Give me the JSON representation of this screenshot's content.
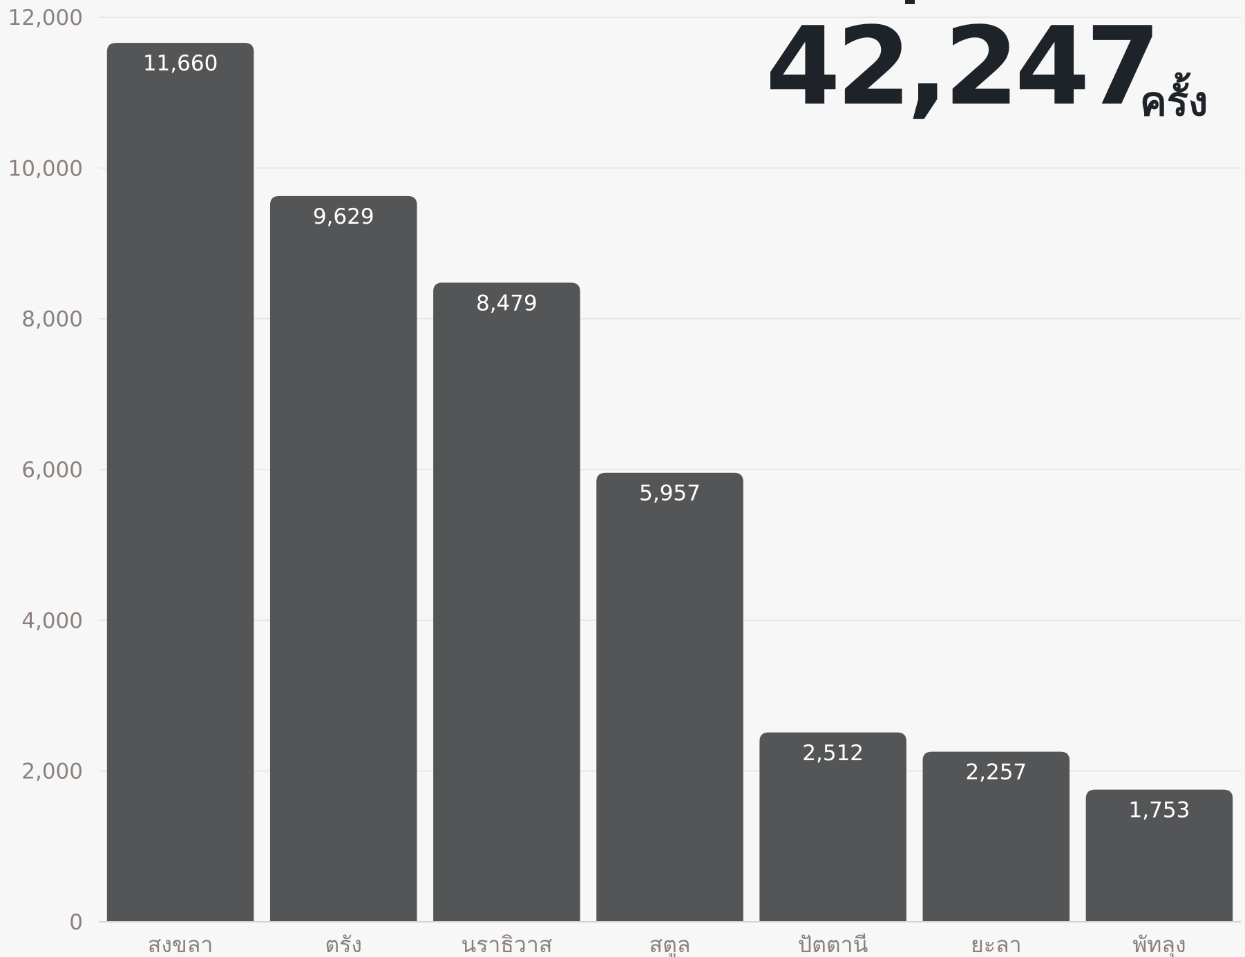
{
  "total": {
    "value": "42,247",
    "unit": "ครั้ง"
  },
  "colors": {
    "bar": "#545557",
    "bar_label": "#ffffff",
    "tick_label": "#8a817c",
    "grid": "#e2e2e2",
    "baseline": "#d2d2d2",
    "total_text": "#1e2329"
  },
  "chart_data": {
    "type": "bar",
    "categories": [
      "สงขลา",
      "ตรัง",
      "นราธิวาส",
      "สตูล",
      "ปัตตานี",
      "ยะลา",
      "พัทลุง"
    ],
    "values": [
      11660,
      9629,
      8479,
      5957,
      2512,
      2257,
      1753
    ],
    "value_labels": [
      "11,660",
      "9,629",
      "8,479",
      "5,957",
      "2,512",
      "2,257",
      "1,753"
    ],
    "ylim": [
      0,
      12000
    ],
    "yticks": [
      0,
      2000,
      4000,
      6000,
      8000,
      10000,
      12000
    ],
    "ytick_labels": [
      "0",
      "2,000",
      "4,000",
      "6,000",
      "8,000",
      "10,000",
      "12,000"
    ],
    "grid": true,
    "title": "",
    "xlabel": "",
    "ylabel": ""
  }
}
